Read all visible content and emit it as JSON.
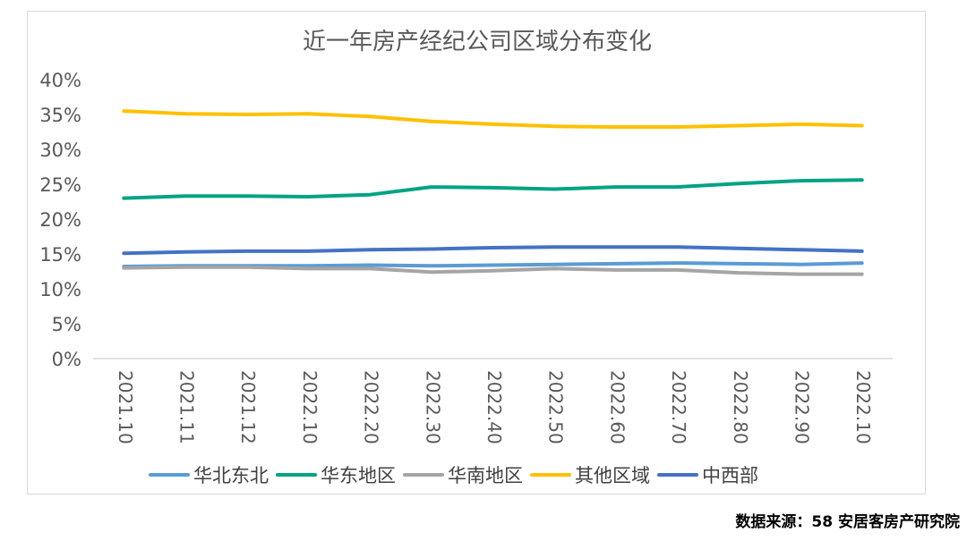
{
  "chart_data": {
    "type": "line",
    "title": "近一年房产经纪公司区域分布变化",
    "xlabel": "",
    "ylabel": "",
    "ylim": [
      0,
      40
    ],
    "yticks": [
      "0%",
      "5%",
      "10%",
      "15%",
      "20%",
      "25%",
      "30%",
      "35%",
      "40%"
    ],
    "categories": [
      "2021.10",
      "2021.11",
      "2021.12",
      "2022.10",
      "2022.20",
      "2022.30",
      "2022.40",
      "2022.50",
      "2022.60",
      "2022.70",
      "2022.80",
      "2022.90",
      "2022.10"
    ],
    "grid": false,
    "legend_position": "bottom",
    "series": [
      {
        "name": "华北东北",
        "color": "#5b9bd5",
        "values": [
          13.2,
          13.3,
          13.3,
          13.3,
          13.4,
          13.3,
          13.4,
          13.5,
          13.6,
          13.7,
          13.6,
          13.5,
          13.7
        ]
      },
      {
        "name": "华东地区",
        "color": "#00a383",
        "values": [
          23.0,
          23.3,
          23.3,
          23.2,
          23.5,
          24.6,
          24.5,
          24.3,
          24.6,
          24.6,
          25.1,
          25.5,
          25.6
        ]
      },
      {
        "name": "华南地区",
        "color": "#a5a5a5",
        "values": [
          13.0,
          13.1,
          13.1,
          12.9,
          12.9,
          12.4,
          12.6,
          12.9,
          12.7,
          12.7,
          12.3,
          12.1,
          12.1
        ]
      },
      {
        "name": "其他区域",
        "color": "#ffc000",
        "values": [
          35.5,
          35.1,
          35.0,
          35.1,
          34.7,
          34.0,
          33.6,
          33.3,
          33.2,
          33.2,
          33.4,
          33.6,
          33.4
        ]
      },
      {
        "name": "中西部",
        "color": "#4472c4",
        "values": [
          15.1,
          15.3,
          15.4,
          15.4,
          15.6,
          15.7,
          15.9,
          16.0,
          16.0,
          16.0,
          15.8,
          15.6,
          15.4
        ]
      }
    ]
  },
  "watermark": "安居客房产研究院",
  "source_note": "数据来源：58 安居客房产研究院"
}
